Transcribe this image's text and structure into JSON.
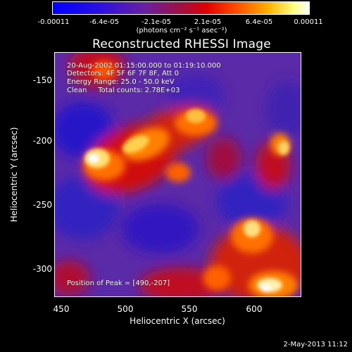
{
  "colorbar": {
    "ticks": [
      "-0.00011",
      "-6.4e-05",
      "-2.1e-05",
      "2.1e-05",
      "6.4e-05",
      "0.00011"
    ],
    "units": "(photons cm⁻² s⁻¹ asec⁻²)",
    "colors": [
      "#0000ff",
      "#4000c0",
      "#800080",
      "#b00040",
      "#e00000",
      "#ff4000",
      "#ff9000",
      "#ffd000",
      "#ffffff"
    ]
  },
  "plot": {
    "title": "Reconstructed RHESSI Image",
    "info": {
      "time_range": "20-Aug-2002 01:15:00.000 to 01:19:10.000",
      "detectors": "Detectors: 4F 5F 6F 7F 8F, Att 0",
      "energy": "Energy Range: 25.0 - 50.0 keV",
      "clean": "Clean     Total counts: 2.78E+03"
    },
    "peak": "Position of Peak = [490,-207]",
    "xlabel": "Heliocentric X (arcsec)",
    "ylabel": "Heliocentric Y (arcsec)",
    "xticks": [
      "450",
      "500",
      "550",
      "600"
    ],
    "yticks": [
      "-150",
      "-200",
      "-250",
      "-300"
    ]
  },
  "timestamp": "2-May-2013 11:12"
}
